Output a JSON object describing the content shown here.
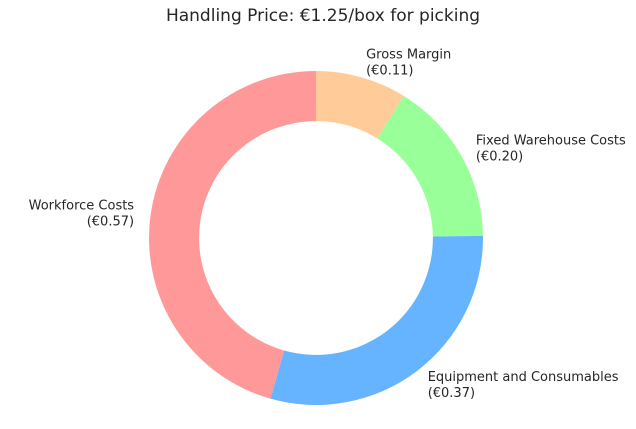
{
  "chart_data": {
    "type": "pie",
    "subtype": "donut",
    "title": "Handling Price: €1.25/box for picking",
    "total": 1.25,
    "currency": "EUR",
    "start_angle": 90,
    "counterclockwise": false,
    "donut_width": 0.3,
    "label_distance": 1.1,
    "legend": "none",
    "grid": false,
    "background_color": "#ffffff",
    "text_color": "#262626",
    "slices": [
      {
        "label": "Gross Margin",
        "value": 0.11,
        "value_label": "(€0.11)",
        "color": "#ffcc99"
      },
      {
        "label": "Fixed Warehouse Costs",
        "value": 0.2,
        "value_label": "(€0.20)",
        "color": "#99ff99"
      },
      {
        "label": "Equipment and Consumables",
        "value": 0.37,
        "value_label": "(€0.37)",
        "color": "#66b3ff"
      },
      {
        "label": "Workforce Costs",
        "value": 0.57,
        "value_label": "(€0.57)",
        "color": "#ff9999"
      }
    ]
  }
}
